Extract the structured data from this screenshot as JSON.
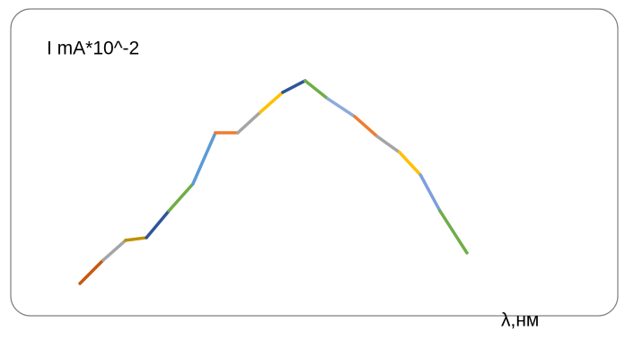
{
  "chart_data": {
    "type": "line",
    "y_label": "I mA*10^-2",
    "x_label": "λ,нм",
    "x": [
      0,
      6,
      11.8,
      17.2,
      23,
      29.2,
      35,
      40.8,
      46.6,
      52.4,
      58.2,
      64,
      71,
      76.8,
      82.6,
      88,
      93,
      100
    ],
    "values": [
      5.2,
      14.8,
      23,
      24.1,
      35.2,
      46.3,
      67.4,
      67.4,
      75.9,
      84.1,
      88.9,
      81.5,
      74.1,
      65.9,
      59.3,
      50,
      35.2,
      17.8
    ],
    "segment_colors": [
      "#c55a11",
      "#a5a5a5",
      "#bf9000",
      "#2f5597",
      "#70ad47",
      "#5b9bd5",
      "#ed7d31",
      "#a5a5a5",
      "#ffc000",
      "#2f5597",
      "#70ad47",
      "#8faadc",
      "#ed7d31",
      "#a5a5a5",
      "#ffc000",
      "#7f9fdc",
      "#70ad47"
    ],
    "xlim": [
      0,
      100
    ],
    "ylim": [
      0,
      100
    ]
  }
}
